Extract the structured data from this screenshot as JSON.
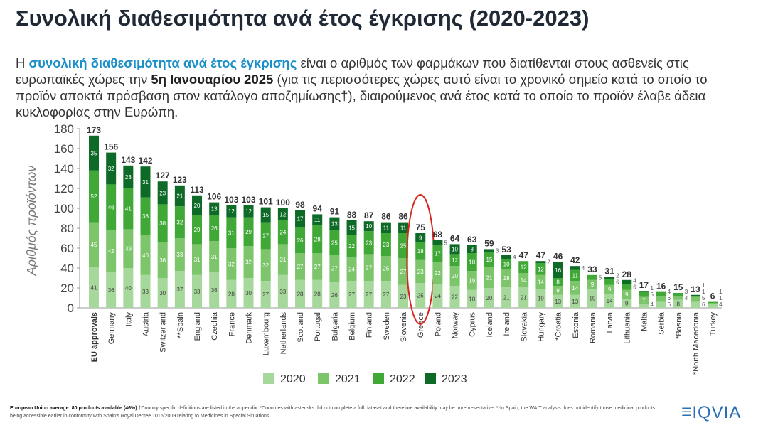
{
  "title": "Συνολική διαθεσιμότητα ανά έτος έγκρισης (2020-2023)",
  "intro": {
    "p1": "Η ",
    "highlight": "συνολική διαθεσιμότητα ανά έτος έγκρισης",
    "p2": " είναι ο αριθμός των φαρμάκων που διατίθενται στους ασθενείς στις ευρωπαϊκές χώρες την ",
    "bold": "5η Ιανουαρίου 2025",
    "p3": " (για τις περισσότερες χώρες αυτό είναι το χρονικό σημείο κατά το οποίο το προϊόν αποκτά πρόσβαση στον κατάλογο αποζημίωσης†), διαιρούμενος ανά έτος κατά το οποίο το προϊόν έλαβε άδεια κυκλοφορίας στην Ευρώπη."
  },
  "footer": {
    "bold": "European Union average: 80 products available (46%)",
    "text": " †Country specific definitions are listed in the appendix. *Countries with asterisks did not complete a full dataset and therefore availability may be unrepresentative. **In Spain, the WAIT analysis does not identify those medicinal products being accessible earlier in conformity with Spain's Royal Decree 1015/2009 relating to Medicines in Special Situations"
  },
  "logo": "IQVIA",
  "chart_data": {
    "type": "bar",
    "stacked": true,
    "ylabel": "Αριθμός προϊόντων",
    "ylim": [
      0,
      180
    ],
    "yticks": [
      0,
      20,
      40,
      60,
      80,
      100,
      120,
      140,
      160,
      180
    ],
    "highlight": "Greece",
    "categories": [
      "EU approvals",
      "Germany",
      "Italy",
      "Austria",
      "Switzerland",
      "**Spain",
      "England",
      "Czechia",
      "France",
      "Denmark",
      "Luxembourg",
      "Netherlands",
      "Scotland",
      "Portugal",
      "Bulgaria",
      "Belgium",
      "Finland",
      "Sweden",
      "Slovenia",
      "Greece",
      "Poland",
      "Norway",
      "Cyprus",
      "Iceland",
      "Ireland",
      "Slovakia",
      "Hungary",
      "*Croatia",
      "Estonia",
      "Romania",
      "Latvia",
      "Lithuania",
      "Malta",
      "Serbia",
      "*Bosnia",
      "*North Macedonia",
      "Turkey"
    ],
    "totals": [
      173,
      156,
      143,
      142,
      127,
      123,
      113,
      106,
      103,
      103,
      101,
      100,
      98,
      94,
      91,
      88,
      87,
      86,
      86,
      75,
      68,
      64,
      63,
      59,
      53,
      47,
      47,
      46,
      42,
      33,
      31,
      28,
      17,
      16,
      15,
      13,
      6
    ],
    "series": [
      {
        "name": "2020",
        "color": "#a6d89b",
        "values": [
          41,
          36,
          40,
          33,
          30,
          37,
          33,
          36,
          28,
          30,
          27,
          33,
          28,
          28,
          26,
          27,
          27,
          27,
          23,
          25,
          24,
          22,
          18,
          20,
          21,
          21,
          19,
          13,
          13,
          19,
          14,
          9,
          4,
          6,
          8,
          6,
          4
        ]
      },
      {
        "name": "2021",
        "color": "#7cc56b",
        "values": [
          45,
          42,
          39,
          40,
          36,
          33,
          31,
          31,
          32,
          32,
          32,
          31,
          27,
          27,
          27,
          24,
          27,
          25,
          27,
          23,
          22,
          20,
          19,
          21,
          18,
          14,
          14,
          9,
          14,
          9,
          9,
          9,
          7,
          6,
          4,
          5,
          1
        ]
      },
      {
        "name": "2022",
        "color": "#40a836",
        "values": [
          52,
          46,
          41,
          38,
          38,
          32,
          29,
          26,
          31,
          29,
          27,
          24,
          26,
          28,
          25,
          22,
          23,
          23,
          25,
          18,
          17,
          12,
          18,
          15,
          10,
          12,
          12,
          8,
          11,
          5,
          6,
          6,
          5,
          4,
          3,
          1,
          1
        ]
      },
      {
        "name": "2023",
        "color": "#0d6a27",
        "values": [
          35,
          32,
          23,
          31,
          23,
          21,
          20,
          13,
          12,
          12,
          15,
          12,
          17,
          11,
          13,
          15,
          10,
          11,
          11,
          9,
          5,
          10,
          8,
          3,
          4,
          0,
          2,
          16,
          4,
          0,
          2,
          4,
          1,
          0,
          0,
          1,
          0
        ]
      }
    ],
    "legend_position": "bottom"
  }
}
